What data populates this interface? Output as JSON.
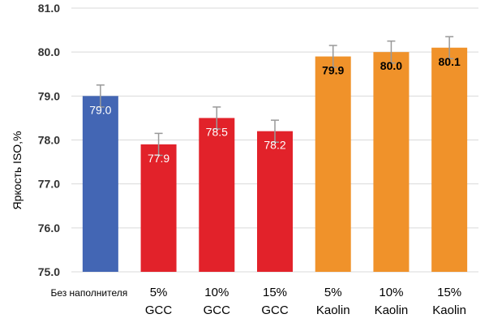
{
  "chart_data": {
    "type": "bar",
    "title": "",
    "xlabel": "",
    "ylabel": "Яркость ISO,%",
    "ylim": [
      75.0,
      81.0
    ],
    "yticks": [
      "75.0",
      "76.0",
      "77.0",
      "78.0",
      "79.0",
      "80.0",
      "81.0"
    ],
    "grid": true,
    "legend": "none",
    "categories": [
      [
        "Без наполнителя"
      ],
      [
        "5%",
        "GCC"
      ],
      [
        "10%",
        "GCC"
      ],
      [
        "15%",
        "GCC"
      ],
      [
        "5%",
        "Kaolin"
      ],
      [
        "10%",
        "Kaolin"
      ],
      [
        "15%",
        "Kaolin"
      ]
    ],
    "values": [
      79.0,
      77.9,
      78.5,
      78.2,
      79.9,
      80.0,
      80.1
    ],
    "data_labels": [
      "79.0",
      "77.9",
      "78.5",
      "78.2",
      "79.9",
      "80.0",
      "80.1"
    ],
    "error_bars": [
      0.25,
      0.25,
      0.25,
      0.25,
      0.25,
      0.25,
      0.25
    ],
    "bar_colors": [
      "#4366b4",
      "#e2222a",
      "#e2222a",
      "#e2222a",
      "#f0922a",
      "#f0922a",
      "#f0922a"
    ],
    "label_colors": [
      "#ffffff",
      "#ffffff",
      "#ffffff",
      "#ffffff",
      "#000000",
      "#000000",
      "#000000"
    ],
    "gridline_color": "#d9d9d9",
    "errorbar_color": "#999999"
  }
}
